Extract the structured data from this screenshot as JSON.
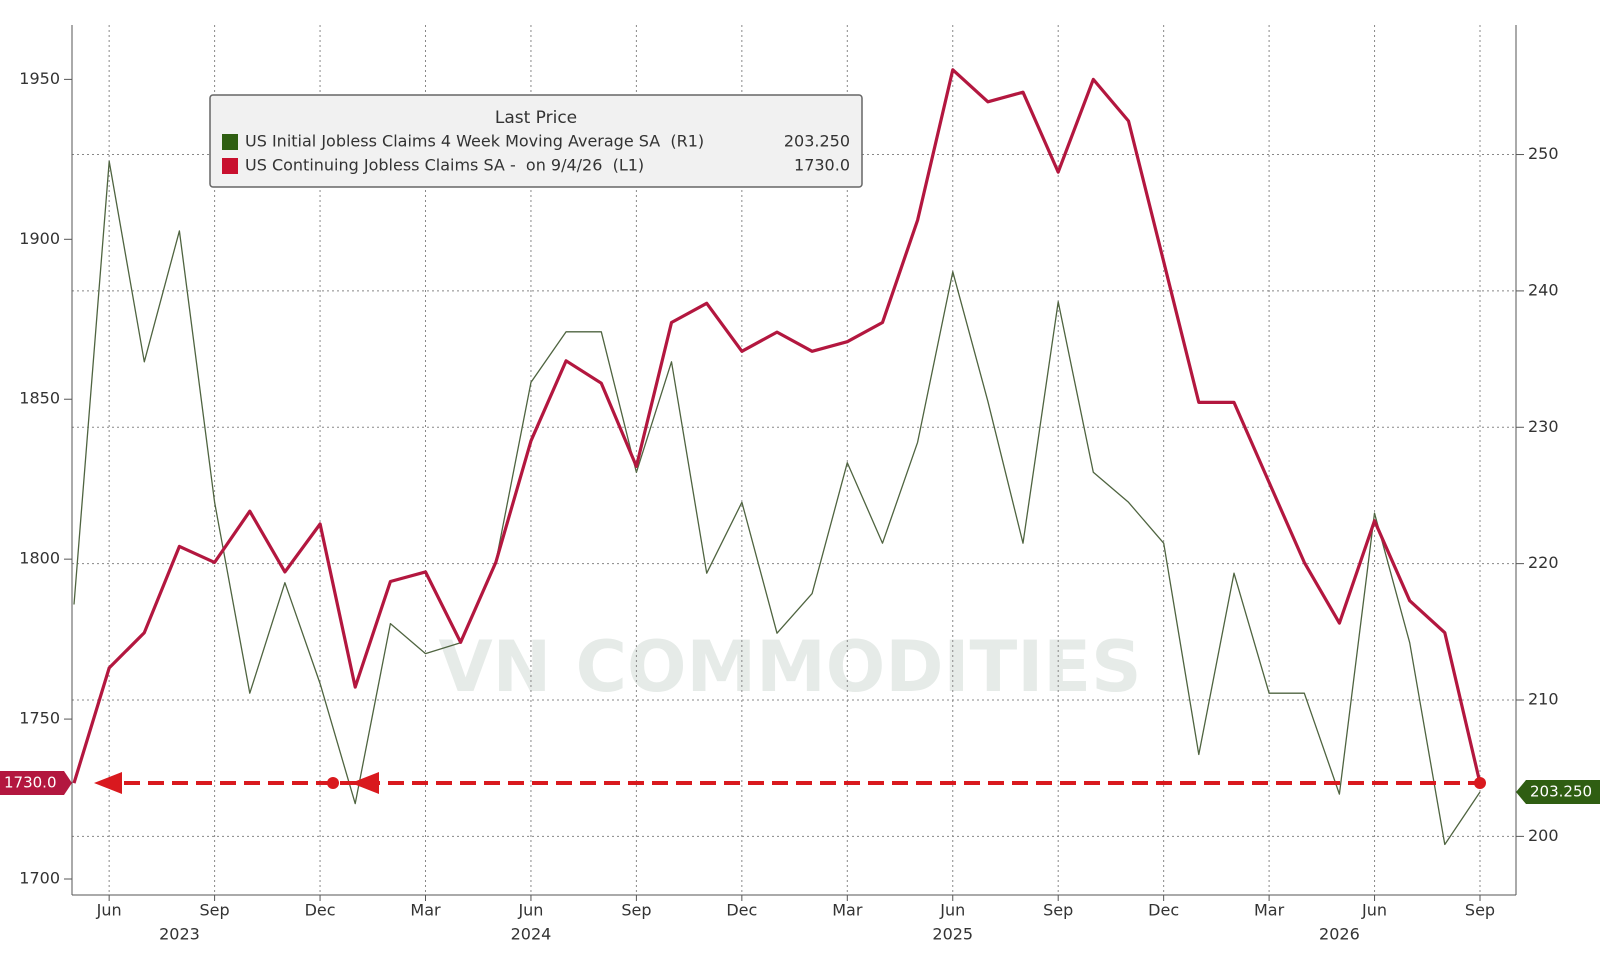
{
  "chart_data": {
    "type": "line",
    "watermark": "VN COMMODITIES",
    "legend_title": "Last Price",
    "categories": [
      "2023-05",
      "2023-06",
      "2023-07",
      "2023-08",
      "2023-09",
      "2023-10",
      "2023-11",
      "2023-12",
      "2024-01",
      "2024-02",
      "2024-03",
      "2024-04",
      "2024-05",
      "2024-06",
      "2024-07",
      "2024-08",
      "2024-09",
      "2024-10",
      "2024-11",
      "2024-12",
      "2025-01",
      "2025-02",
      "2025-03",
      "2025-04",
      "2025-05",
      "2025-06",
      "2025-07",
      "2025-08",
      "2025-09",
      "2025-10",
      "2025-11",
      "2025-12",
      "2026-01",
      "2026-02",
      "2026-03",
      "2026-04",
      "2026-05",
      "2026-06",
      "2026-07",
      "2026-08",
      "2026-09"
    ],
    "series": [
      {
        "name": "US Initial Jobless Claims 4 Week Moving Average SA  (R1)",
        "color": "#4f6440",
        "legend_color": "#2f5e12",
        "axis": "y2",
        "last_label": "203.250",
        "values": [
          217,
          249.5,
          234.8,
          244.4,
          224.5,
          210.5,
          218.6,
          211.2,
          202.4,
          215.6,
          213.4,
          214.2,
          220.1,
          233.3,
          237,
          237,
          226.7,
          234.8,
          219.3,
          224.5,
          214.9,
          217.8,
          227.4,
          221.5,
          228.9,
          241.4,
          231.9,
          221.5,
          239.2,
          226.7,
          224.5,
          221.5,
          206,
          219.3,
          210.5,
          210.5,
          203.1,
          223.7,
          214.2,
          199.4,
          203.25
        ]
      },
      {
        "name": "US Continuing Jobless Claims SA -  on 9/4/26  (L1)",
        "color": "#b3173f",
        "legend_color": "#c8102e",
        "axis": "y",
        "last_label": "1730.0",
        "values": [
          1730,
          1766,
          1777,
          1804,
          1799,
          1815,
          1796,
          1811,
          1760,
          1793,
          1796,
          1774,
          1799,
          1837,
          1862,
          1855,
          1829,
          1874,
          1880,
          1865,
          1871,
          1865,
          1868,
          1874,
          1906,
          1953,
          1943,
          1946,
          1921,
          1950,
          1937,
          1893,
          1849,
          1849,
          1824,
          1799,
          1780,
          1812,
          1787,
          1777,
          1730
        ]
      }
    ],
    "ylim": [
      1695,
      1967
    ],
    "yticks": [
      1700,
      1750,
      1800,
      1850,
      1900,
      1950
    ],
    "y2lim": [
      195.7,
      259.5
    ],
    "y2ticks": [
      200,
      210,
      220,
      230,
      240,
      250
    ],
    "xticks": [
      {
        "value": "2023-06",
        "label": "Jun"
      },
      {
        "value": "2023-09",
        "label": "Sep"
      },
      {
        "value": "2023-12",
        "label": "Dec"
      },
      {
        "value": "2024-03",
        "label": "Mar"
      },
      {
        "value": "2024-06",
        "label": "Jun"
      },
      {
        "value": "2024-09",
        "label": "Sep"
      },
      {
        "value": "2024-12",
        "label": "Dec"
      },
      {
        "value": "2025-03",
        "label": "Mar"
      },
      {
        "value": "2025-06",
        "label": "Jun"
      },
      {
        "value": "2025-09",
        "label": "Sep"
      },
      {
        "value": "2025-12",
        "label": "Dec"
      },
      {
        "value": "2026-03",
        "label": "Mar"
      },
      {
        "value": "2026-06",
        "label": "Jun"
      },
      {
        "value": "2026-09",
        "label": "Sep"
      }
    ],
    "year_labels": [
      {
        "value": "2023-08",
        "label": "2023"
      },
      {
        "value": "2024-06",
        "label": "2024"
      },
      {
        "value": "2025-06",
        "label": "2025"
      },
      {
        "value": "2026-05",
        "label": "2026"
      }
    ],
    "grid": true
  }
}
